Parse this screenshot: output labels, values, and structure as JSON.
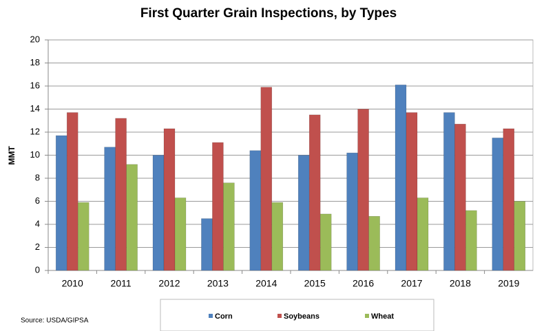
{
  "chart_data": {
    "type": "bar",
    "title": "First Quarter Grain Inspections, by Types",
    "y_label": "MMT",
    "source": "Source: USDA/GIPSA",
    "categories": [
      "2010",
      "2011",
      "2012",
      "2013",
      "2014",
      "2015",
      "2016",
      "2017",
      "2018",
      "2019"
    ],
    "series": [
      {
        "name": "Corn",
        "color": "#4f81bd",
        "values": [
          11.7,
          10.7,
          10.0,
          4.5,
          10.4,
          10.0,
          10.2,
          16.1,
          13.7,
          11.5
        ]
      },
      {
        "name": "Soybeans",
        "color": "#c0504d",
        "values": [
          13.7,
          13.2,
          12.3,
          11.1,
          15.9,
          13.5,
          14.0,
          13.7,
          12.7,
          12.3
        ]
      },
      {
        "name": "Wheat",
        "color": "#9bbb59",
        "values": [
          5.9,
          9.2,
          6.3,
          7.6,
          5.9,
          4.9,
          4.7,
          6.3,
          5.2,
          6.0
        ]
      }
    ],
    "ylim": [
      0,
      20
    ],
    "yticks": [
      0,
      2,
      4,
      6,
      8,
      10,
      12,
      14,
      16,
      18,
      20
    ],
    "grid": true,
    "legend": "bottom"
  }
}
